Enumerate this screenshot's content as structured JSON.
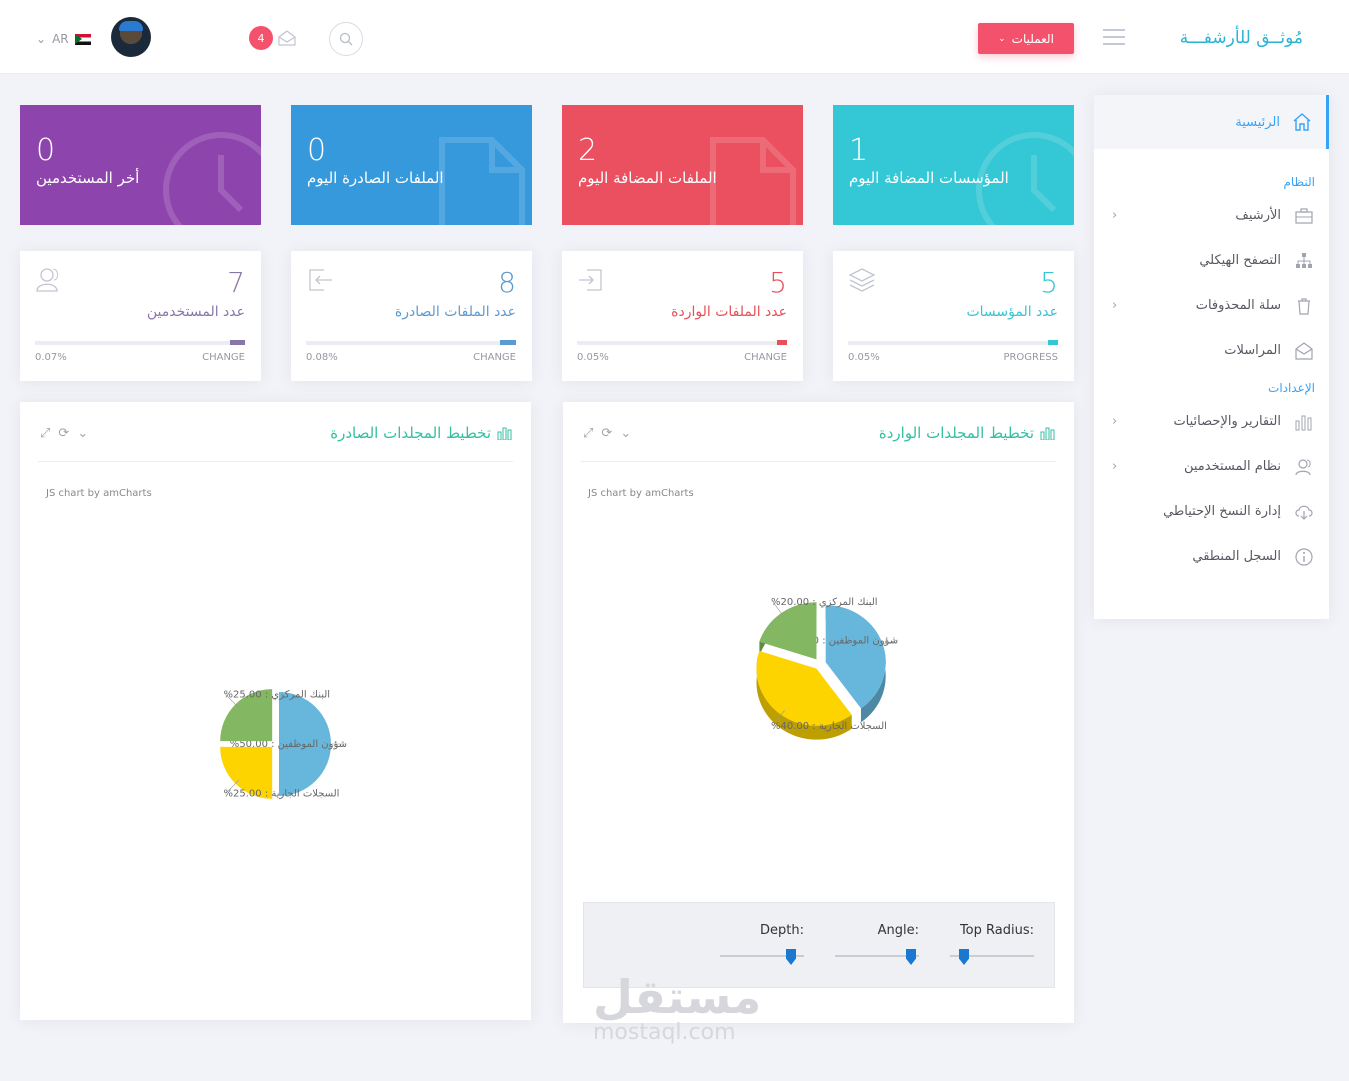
{
  "header": {
    "brand": "مُوثــق للأرشفـــة",
    "operations_label": "العمليات",
    "notifications_count": "4",
    "language": "AR"
  },
  "sidebar": {
    "home": "الرئيسية",
    "section_system": "النظام",
    "section_settings": "الإعدادات",
    "items": [
      {
        "label": "الأرشيف",
        "icon": "briefcase-icon",
        "arrow": "‹"
      },
      {
        "label": "التصفح الهيكلي",
        "icon": "sitemap-icon",
        "arrow": ""
      },
      {
        "label": "سلة المحذوفات",
        "icon": "trash-icon",
        "arrow": "‹"
      },
      {
        "label": "المراسلات",
        "icon": "mail-open-icon",
        "arrow": ""
      },
      {
        "label": "التقارير والإحصائيات",
        "icon": "bar-chart-icon",
        "arrow": "‹"
      },
      {
        "label": "نظام المستخدمين",
        "icon": "users-icon",
        "arrow": "‹"
      },
      {
        "label": "إدارة النسخ الإحتياطي",
        "icon": "cloud-download-icon",
        "arrow": ""
      },
      {
        "label": "السجل المنطقي",
        "icon": "info-icon",
        "arrow": ""
      }
    ]
  },
  "tiles": [
    {
      "value": "1",
      "label": "المؤسسات المضافة اليوم",
      "color": "#34c7d5"
    },
    {
      "value": "2",
      "label": "الملفات المضافة اليوم",
      "color": "#ea505f"
    },
    {
      "value": "0",
      "label": "الملفات الصادرة اليوم",
      "color": "#3699dc"
    },
    {
      "value": "0",
      "label": "أخر المستخدمين",
      "color": "#8e44ad"
    }
  ],
  "cards": [
    {
      "value": "5",
      "title": "عدد المؤسسات",
      "left": "0.05%",
      "right": "PROGRESS",
      "color": "#36c6d3",
      "progress": 0.05
    },
    {
      "value": "5",
      "title": "عدد الملفات الواردة",
      "left": "0.05%",
      "right": "CHANGE",
      "color": "#e7505a",
      "progress": 0.05
    },
    {
      "value": "8",
      "title": "عدد الملفات الصادرة",
      "left": "0.08%",
      "right": "CHANGE",
      "color": "#5c9bd1",
      "progress": 0.08
    },
    {
      "value": "7",
      "title": "عدد المستخدمين",
      "left": "0.07%",
      "right": "CHANGE",
      "color": "#8877a9",
      "progress": 0.07
    }
  ],
  "portlets": {
    "incoming_title": "تخطيط المجلدات الواردة",
    "outgoing_title": "تخطيط المجلدات الصادرة",
    "credit": "JS chart by amCharts"
  },
  "controls": {
    "top_radius": "Top Radius:",
    "angle": "Angle:",
    "depth": "Depth:"
  },
  "chart_data": [
    {
      "type": "pie",
      "title": "تخطيط المجلدات الواردة",
      "slices": [
        {
          "name": "شؤون الموظفين",
          "value": 40.0,
          "label": "شؤون الموظفين : 40.00%",
          "color": "#67b7dc"
        },
        {
          "name": "السجلات الجارية",
          "value": 40.0,
          "label": "السجلات الجارية : 40.00%",
          "color": "#fdd400"
        },
        {
          "name": "البنك المركزي",
          "value": 20.0,
          "label": "البنك المركزي : 20.00%",
          "color": "#84b761"
        }
      ]
    },
    {
      "type": "pie",
      "title": "تخطيط المجلدات الصادرة",
      "slices": [
        {
          "name": "شؤون الموظفين",
          "value": 50.0,
          "label": "شؤون الموظفين : 50.00%",
          "color": "#67b7dc"
        },
        {
          "name": "السجلات الجارية",
          "value": 25.0,
          "label": "السجلات الجارية : 25.00%",
          "color": "#fdd400"
        },
        {
          "name": "البنك المركزي",
          "value": 25.0,
          "label": "البنك المركزي : 25.00%",
          "color": "#84b761"
        }
      ]
    }
  ],
  "watermark": {
    "ar": "مستقل",
    "en": "mostaql.com"
  }
}
